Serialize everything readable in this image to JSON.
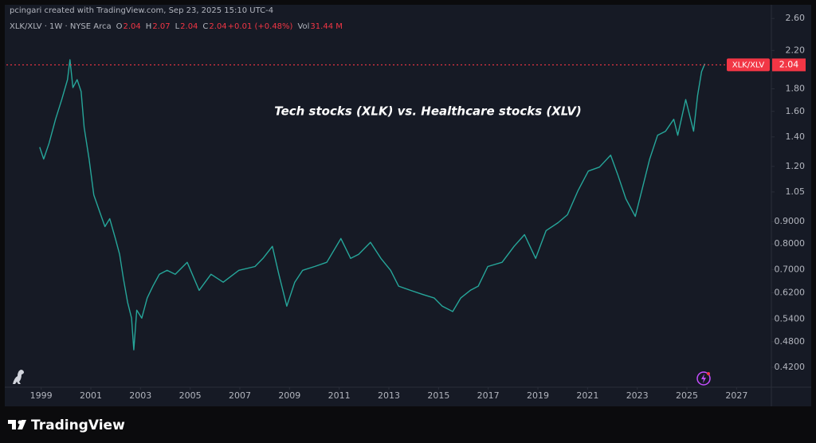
{
  "attribution": "pcingari created with TradingView.com, Sep 23, 2025 15:10 UTC-4",
  "legend": {
    "symbol": "XLK/XLV · 1W · NYSE Arca",
    "open_label": "O",
    "open": 2.04,
    "high_label": "H",
    "high": 2.07,
    "low_label": "L",
    "low": 2.04,
    "close_label": "C",
    "close": 2.04,
    "change": "+0.01 (+0.48%)",
    "volume_label": "Vol",
    "volume": "31.44 M"
  },
  "footer": "TradingView",
  "chart_data": {
    "type": "line",
    "annotation": "Tech stocks (XLK) vs. Healthcare stocks (XLV)",
    "log_scale": true,
    "xlim": [
      1997.6,
      2028.4
    ],
    "xticks": [
      1999,
      2001,
      2003,
      2005,
      2007,
      2009,
      2011,
      2013,
      2015,
      2017,
      2019,
      2021,
      2023,
      2025,
      2027
    ],
    "ylim": [
      0.38,
      2.69
    ],
    "yticks": [
      {
        "value": 0.42,
        "label": "0.4200"
      },
      {
        "value": 0.48,
        "label": "0.4800"
      },
      {
        "value": 0.54,
        "label": "0.5400"
      },
      {
        "value": 0.62,
        "label": "0.6200"
      },
      {
        "value": 0.7,
        "label": "0.7000"
      },
      {
        "value": 0.8,
        "label": "0.8000"
      },
      {
        "value": 0.9,
        "label": "0.9000"
      },
      1.05,
      {
        "value": 1.2,
        "label": "1.20"
      },
      {
        "value": 1.4,
        "label": "1.40"
      },
      {
        "value": 1.6,
        "label": "1.60"
      },
      {
        "value": 1.8,
        "label": "1.80"
      },
      {
        "value": 2.2,
        "label": "2.20"
      },
      {
        "value": 2.6,
        "label": "2.60"
      }
    ],
    "last_price": 2.04,
    "last_price_color": "#f23645",
    "series": [
      {
        "name": "XLK/XLV",
        "color": "#26a69a",
        "x": [
          1998.94,
          1999.1,
          1999.32,
          1999.58,
          1999.83,
          2000.06,
          2000.16,
          2000.28,
          2000.45,
          2000.61,
          2000.73,
          2000.93,
          2001.12,
          2001.34,
          2001.57,
          2001.76,
          2001.99,
          2002.16,
          2002.31,
          2002.48,
          2002.64,
          2002.73,
          2002.85,
          2003.05,
          2003.27,
          2003.5,
          2003.76,
          2004.07,
          2004.4,
          2004.88,
          2005.36,
          2005.84,
          2006.33,
          2006.96,
          2007.61,
          2007.93,
          2008.31,
          2008.57,
          2008.89,
          2009.21,
          2009.53,
          2010.01,
          2010.5,
          2011.07,
          2011.46,
          2011.78,
          2012.26,
          2012.68,
          2013.07,
          2013.39,
          2013.87,
          2014.35,
          2014.83,
          2015.15,
          2015.57,
          2015.89,
          2016.28,
          2016.6,
          2016.98,
          2017.56,
          2018.04,
          2018.46,
          2018.91,
          2019.33,
          2019.81,
          2020.19,
          2020.61,
          2021.03,
          2021.48,
          2021.93,
          2022.22,
          2022.54,
          2022.92,
          2023.18,
          2023.5,
          2023.82,
          2024.14,
          2024.47,
          2024.63,
          2024.95,
          2025.27,
          2025.43,
          2025.59,
          2025.72
        ],
        "values": [
          1.327,
          1.247,
          1.355,
          1.535,
          1.702,
          1.888,
          2.095,
          1.812,
          1.888,
          1.775,
          1.472,
          1.247,
          1.034,
          0.952,
          0.876,
          0.913,
          0.823,
          0.758,
          0.669,
          0.59,
          0.543,
          0.46,
          0.566,
          0.543,
          0.603,
          0.642,
          0.683,
          0.697,
          0.683,
          0.727,
          0.628,
          0.683,
          0.655,
          0.697,
          0.711,
          0.742,
          0.79,
          0.683,
          0.578,
          0.655,
          0.697,
          0.711,
          0.727,
          0.823,
          0.742,
          0.758,
          0.807,
          0.742,
          0.697,
          0.642,
          0.628,
          0.615,
          0.603,
          0.578,
          0.562,
          0.603,
          0.628,
          0.642,
          0.711,
          0.727,
          0.79,
          0.84,
          0.742,
          0.858,
          0.894,
          0.932,
          1.056,
          1.171,
          1.196,
          1.273,
          1.147,
          1.013,
          0.924,
          1.056,
          1.247,
          1.412,
          1.442,
          1.535,
          1.412,
          1.702,
          1.442,
          1.738,
          1.969,
          2.052
        ]
      }
    ]
  }
}
